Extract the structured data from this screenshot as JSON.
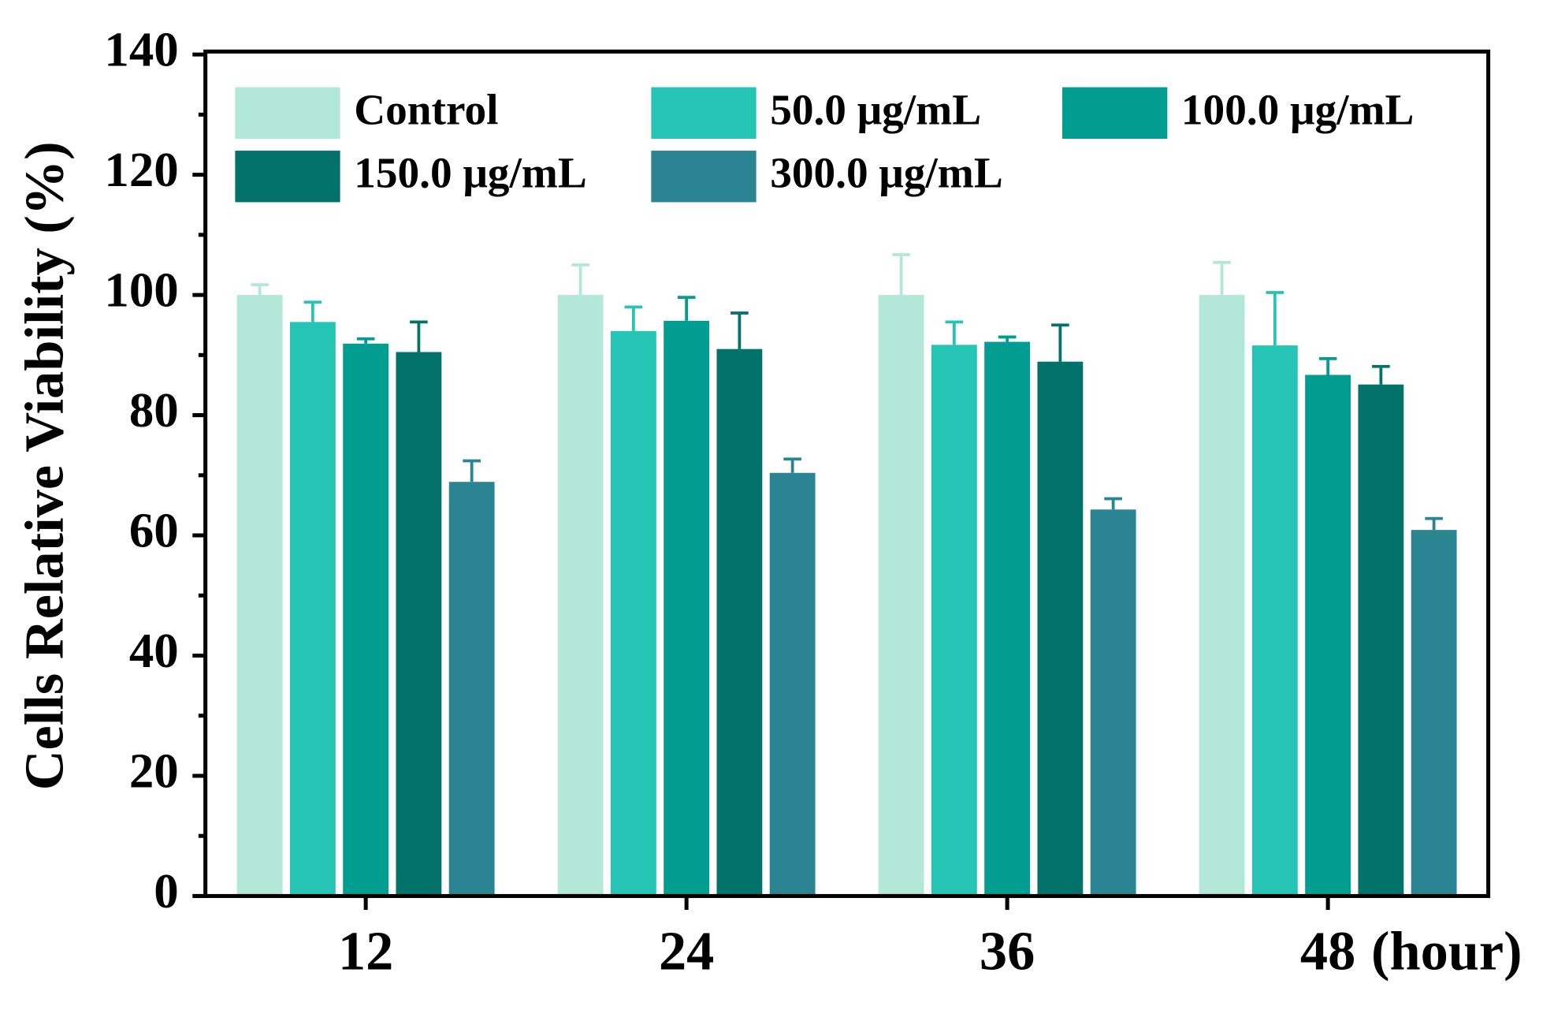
{
  "chart_data": {
    "type": "bar",
    "y_label": "Cells Relative Viability  (%)",
    "x_label": "(hour)",
    "categories": [
      "12",
      "24",
      "36",
      "48"
    ],
    "series": [
      {
        "name": "Control",
        "color": "#b3e8d9",
        "values": [
          100,
          100,
          100,
          100
        ],
        "errors": [
          1.7,
          5,
          6.7,
          5.4
        ]
      },
      {
        "name": "50.0 μg/mL",
        "color": "#26c4b4",
        "values": [
          95.5,
          94,
          91.7,
          91.6
        ],
        "errors": [
          3.3,
          4,
          3.8,
          8.8
        ]
      },
      {
        "name": "100.0 μg/mL",
        "color": "#009d90",
        "values": [
          91.9,
          95.7,
          92.2,
          86.7
        ],
        "errors": [
          0.8,
          3.9,
          0.8,
          2.7
        ]
      },
      {
        "name": "150.0 μg/mL",
        "color": "#03726a",
        "values": [
          90.5,
          91,
          88.9,
          85.1
        ],
        "errors": [
          5,
          6,
          6.1,
          3
        ]
      },
      {
        "name": "300.0 μg/mL",
        "color": "#2a8491",
        "values": [
          68.9,
          70.4,
          64.3,
          60.9
        ],
        "errors": [
          3.5,
          2.3,
          1.8,
          1.9
        ]
      }
    ],
    "ylim": [
      0,
      140
    ],
    "yticks": [
      0,
      20,
      40,
      60,
      80,
      100,
      120,
      140
    ]
  }
}
